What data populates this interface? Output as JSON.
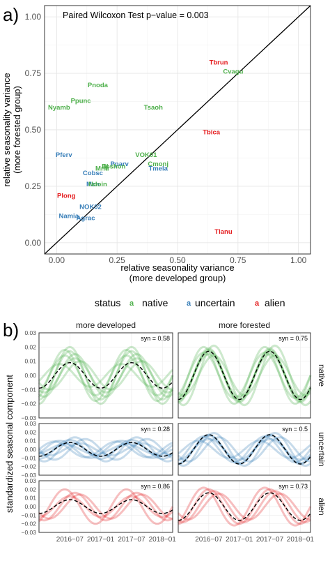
{
  "panel_a": {
    "label": "a)",
    "annotation": "Paired Wilcoxon Test p−value = 0.003",
    "legend": {
      "title": "status",
      "items": [
        {
          "key": "native",
          "glyph": "a",
          "label": "native",
          "color": "#4daf4a"
        },
        {
          "key": "uncertain",
          "glyph": "a",
          "label": "uncertain",
          "color": "#377eb8"
        },
        {
          "key": "alien",
          "glyph": "a",
          "label": "alien",
          "color": "#e41a1c"
        }
      ]
    }
  },
  "panel_b": {
    "label": "b)",
    "ylabel": "standardized seasonal component",
    "col_titles": [
      "more developed",
      "more forested"
    ],
    "row_titles": [
      "native",
      "uncertain",
      "alien"
    ],
    "syn_values": [
      [
        "syn = 0.58",
        "syn = 0.75"
      ],
      [
        "syn = 0.28",
        "syn = 0.5"
      ],
      [
        "syn = 0.86",
        "syn = 0.73"
      ]
    ],
    "row_colors": [
      "#4daf4a",
      "#377eb8",
      "#e41a1c"
    ]
  },
  "chart_data": [
    {
      "type": "scatter",
      "title": "",
      "xlabel": [
        "relative seasonality variance",
        "(more developed group)"
      ],
      "ylabel": [
        "relative seasonality variance",
        "(more forested group)"
      ],
      "xlim": [
        -0.05,
        1.05
      ],
      "ylim": [
        -0.05,
        1.05
      ],
      "xticks": [
        "0.00",
        "0.25",
        "0.50",
        "0.75",
        "1.00"
      ],
      "yticks": [
        "0.00",
        "0.25",
        "0.50",
        "0.75",
        "1.00"
      ],
      "reference_line": "y = x",
      "grid": true,
      "points": [
        {
          "label": "Tbrun",
          "x": 0.67,
          "y": 0.8,
          "status": "alien"
        },
        {
          "label": "Cvagu",
          "x": 0.73,
          "y": 0.76,
          "status": "native"
        },
        {
          "label": "Pnoda",
          "x": 0.17,
          "y": 0.7,
          "status": "native"
        },
        {
          "label": "Ppunc",
          "x": 0.1,
          "y": 0.63,
          "status": "native"
        },
        {
          "label": "Nyamb",
          "x": 0.01,
          "y": 0.6,
          "status": "native"
        },
        {
          "label": "Tsaoh",
          "x": 0.4,
          "y": 0.6,
          "status": "native"
        },
        {
          "label": "Tbica",
          "x": 0.64,
          "y": 0.49,
          "status": "alien"
        },
        {
          "label": "Pferv",
          "x": 0.03,
          "y": 0.39,
          "status": "uncertain"
        },
        {
          "label": "VOK01",
          "x": 0.37,
          "y": 0.39,
          "status": "native"
        },
        {
          "label": "Cmonj",
          "x": 0.42,
          "y": 0.35,
          "status": "native"
        },
        {
          "label": "Tmela",
          "x": 0.42,
          "y": 0.33,
          "status": "uncertain"
        },
        {
          "label": "Pparv",
          "x": 0.26,
          "y": 0.35,
          "status": "uncertain"
        },
        {
          "label": "Bl",
          "x": 0.2,
          "y": 0.34,
          "status": "native"
        },
        {
          "label": "Ipshon",
          "x": 0.24,
          "y": 0.34,
          "status": "native"
        },
        {
          "label": "Mntr",
          "x": 0.19,
          "y": 0.33,
          "status": "native"
        },
        {
          "label": "Cobsc",
          "x": 0.15,
          "y": 0.31,
          "status": "uncertain"
        },
        {
          "label": "Mcn",
          "x": 0.15,
          "y": 0.26,
          "status": "uncertain"
        },
        {
          "label": "Ndoin",
          "x": 0.17,
          "y": 0.26,
          "status": "native"
        },
        {
          "label": "Plong",
          "x": 0.04,
          "y": 0.21,
          "status": "alien"
        },
        {
          "label": "NOK02",
          "x": 0.14,
          "y": 0.16,
          "status": "uncertain"
        },
        {
          "label": "Namia",
          "x": 0.05,
          "y": 0.12,
          "status": "uncertain"
        },
        {
          "label": "Agrac",
          "x": 0.12,
          "y": 0.11,
          "status": "uncertain"
        },
        {
          "label": "Tlanu",
          "x": 0.69,
          "y": 0.05,
          "status": "alien"
        }
      ]
    },
    {
      "type": "line",
      "title": "",
      "facets": {
        "columns": [
          "more developed",
          "more forested"
        ],
        "rows": [
          "native",
          "uncertain",
          "alien"
        ]
      },
      "x_ticks": [
        "2016−07",
        "2017−01",
        "2017−07",
        "2018−01"
      ],
      "x_tick_dates": [
        "2016-07",
        "2017-01",
        "2017-07",
        "2018-01"
      ],
      "x_range": [
        "2016-01",
        "2018-03"
      ],
      "y_ticks": [
        "0.03",
        "0.02",
        "0.01",
        "0.00",
        "−0.01",
        "−0.02",
        "−0.03"
      ],
      "ylim": [
        -0.03,
        0.03
      ],
      "period": "12 months",
      "panels": [
        {
          "row": "native",
          "column": "more developed",
          "syn": 0.58,
          "mean_amplitude": 0.009,
          "mean_peak": "2016-07",
          "series": [
            {
              "amplitude": 0.014,
              "peak": "2016-06"
            },
            {
              "amplitude": 0.017,
              "peak": "2016-07"
            },
            {
              "amplitude": 0.02,
              "peak": "2016-07"
            },
            {
              "amplitude": 0.012,
              "peak": "2016-08"
            },
            {
              "amplitude": 0.018,
              "peak": "2016-06"
            },
            {
              "amplitude": 0.01,
              "peak": "2016-09"
            },
            {
              "amplitude": 0.015,
              "peak": "2016-08"
            },
            {
              "amplitude": 0.008,
              "peak": "2016-05"
            }
          ]
        },
        {
          "row": "native",
          "column": "more forested",
          "syn": 0.75,
          "mean_amplitude": 0.017,
          "mean_peak": "2016-07",
          "series": [
            {
              "amplitude": 0.015,
              "peak": "2016-07"
            },
            {
              "amplitude": 0.018,
              "peak": "2016-07"
            },
            {
              "amplitude": 0.021,
              "peak": "2016-08"
            },
            {
              "amplitude": 0.016,
              "peak": "2016-06"
            },
            {
              "amplitude": 0.019,
              "peak": "2016-07"
            },
            {
              "amplitude": 0.014,
              "peak": "2016-08"
            },
            {
              "amplitude": 0.02,
              "peak": "2016-06"
            },
            {
              "amplitude": 0.017,
              "peak": "2016-07"
            }
          ]
        },
        {
          "row": "uncertain",
          "column": "more developed",
          "syn": 0.28,
          "mean_amplitude": 0.008,
          "mean_peak": "2016-07",
          "series": [
            {
              "amplitude": 0.01,
              "peak": "2016-05"
            },
            {
              "amplitude": 0.014,
              "peak": "2016-08"
            },
            {
              "amplitude": 0.008,
              "peak": "2016-07"
            },
            {
              "amplitude": 0.012,
              "peak": "2016-10"
            },
            {
              "amplitude": 0.006,
              "peak": "2016-06"
            },
            {
              "amplitude": 0.009,
              "peak": "2016-04"
            },
            {
              "amplitude": 0.011,
              "peak": "2016-07"
            },
            {
              "amplitude": 0.007,
              "peak": "2016-09"
            }
          ]
        },
        {
          "row": "uncertain",
          "column": "more forested",
          "syn": 0.5,
          "mean_amplitude": 0.017,
          "mean_peak": "2016-07",
          "series": [
            {
              "amplitude": 0.017,
              "peak": "2016-07"
            },
            {
              "amplitude": 0.015,
              "peak": "2016-06"
            },
            {
              "amplitude": 0.019,
              "peak": "2016-08"
            },
            {
              "amplitude": 0.012,
              "peak": "2016-07"
            },
            {
              "amplitude": 0.01,
              "peak": "2016-05"
            },
            {
              "amplitude": 0.014,
              "peak": "2016-09"
            },
            {
              "amplitude": 0.016,
              "peak": "2016-07"
            }
          ]
        },
        {
          "row": "alien",
          "column": "more developed",
          "syn": 0.86,
          "mean_amplitude": 0.008,
          "mean_peak": "2016-07",
          "series": [
            {
              "amplitude": 0.02,
              "peak": "2016-06"
            },
            {
              "amplitude": 0.016,
              "peak": "2016-08"
            },
            {
              "amplitude": 0.012,
              "peak": "2016-07"
            },
            {
              "amplitude": 0.014,
              "peak": "2016-09"
            }
          ]
        },
        {
          "row": "alien",
          "column": "more forested",
          "syn": 0.73,
          "mean_amplitude": 0.016,
          "mean_peak": "2016-07",
          "series": [
            {
              "amplitude": 0.022,
              "peak": "2016-06"
            },
            {
              "amplitude": 0.018,
              "peak": "2016-08"
            },
            {
              "amplitude": 0.02,
              "peak": "2016-07"
            },
            {
              "amplitude": 0.015,
              "peak": "2016-09"
            }
          ]
        }
      ]
    }
  ]
}
